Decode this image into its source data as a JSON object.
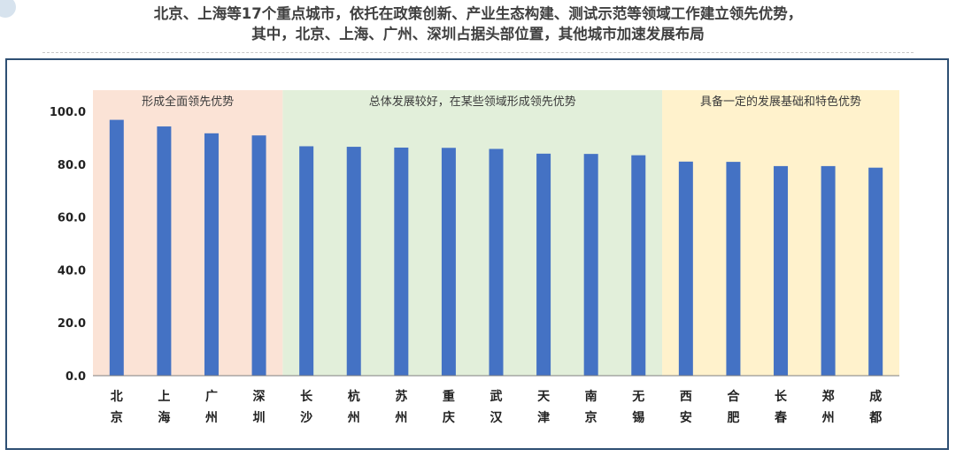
{
  "header": {
    "title_line1": "北京、上海等17个重点城市，依托在政策创新、产业生态构建、测试示范等领域工作建立领先优势，",
    "title_line2": "其中，北京、上海、广州、深圳占据头部位置，其他城市加速发展布局"
  },
  "colors": {
    "bar": "#4472c4",
    "band_lead": "#fbe3d6",
    "band_good": "#e2efda",
    "band_base": "#fff2cc",
    "frame": "#2e4f73",
    "title": "#404040"
  },
  "chart_data": {
    "type": "bar",
    "categories": [
      "北京",
      "上海",
      "广州",
      "深圳",
      "长沙",
      "杭州",
      "苏州",
      "重庆",
      "武汉",
      "天津",
      "南京",
      "无锡",
      "西安",
      "合肥",
      "长春",
      "郑州",
      "成都"
    ],
    "values": [
      96.8,
      94.3,
      91.7,
      90.9,
      86.8,
      86.6,
      86.3,
      86.2,
      85.8,
      84.0,
      83.9,
      83.4,
      81.0,
      80.9,
      79.3,
      79.3,
      78.7
    ],
    "ylim": [
      0,
      100
    ],
    "yticks": [
      "0.0",
      "20.0",
      "40.0",
      "60.0",
      "80.0",
      "100.0"
    ],
    "ytick_values": [
      0,
      20,
      40,
      60,
      80,
      100
    ],
    "grid": false,
    "legend": "none",
    "bands": [
      {
        "label": "形成全面领先优势",
        "start": 0,
        "end": 3,
        "color": "#fbe3d6"
      },
      {
        "label": "总体发展较好，在某些领域形成领先优势",
        "start": 4,
        "end": 11,
        "color": "#e2efda"
      },
      {
        "label": "具备一定的发展基础和特色优势",
        "start": 12,
        "end": 16,
        "color": "#fff2cc"
      }
    ]
  }
}
